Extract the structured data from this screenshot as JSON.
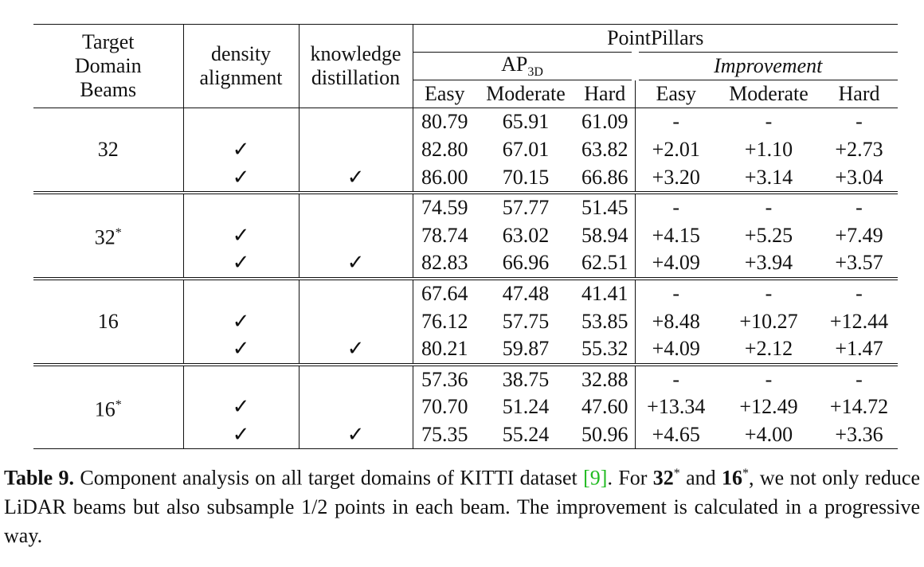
{
  "table": {
    "header": {
      "beams": [
        "Target",
        "Domain",
        "Beams"
      ],
      "density": [
        "density",
        "alignment"
      ],
      "knowledge": [
        "knowledge",
        "distillation"
      ],
      "method": "PointPillars",
      "ap": {
        "text": "AP",
        "sub": "3D"
      },
      "improvement": "Improvement",
      "sub_columns": [
        "Easy",
        "Moderate",
        "Hard",
        "Easy",
        "Moderate",
        "Hard"
      ]
    },
    "groups": [
      {
        "beams": {
          "text": "32"
        },
        "rows": [
          {
            "values": [
              "80.79",
              "65.91",
              "61.09",
              "-",
              "-",
              "-"
            ]
          },
          {
            "density": "✓",
            "values": [
              "82.80",
              "67.01",
              "63.82",
              "+2.01",
              "+1.10",
              "+2.73"
            ]
          },
          {
            "density": "✓",
            "knowledge": "✓",
            "values": [
              "86.00",
              "70.15",
              "66.86",
              "+3.20",
              "+3.14",
              "+3.04"
            ]
          }
        ]
      },
      {
        "beams": {
          "text": "32",
          "sup": "*"
        },
        "rows": [
          {
            "values": [
              "74.59",
              "57.77",
              "51.45",
              "-",
              "-",
              "-"
            ]
          },
          {
            "density": "✓",
            "values": [
              "78.74",
              "63.02",
              "58.94",
              "+4.15",
              "+5.25",
              "+7.49"
            ]
          },
          {
            "density": "✓",
            "knowledge": "✓",
            "values": [
              "82.83",
              "66.96",
              "62.51",
              "+4.09",
              "+3.94",
              "+3.57"
            ]
          }
        ]
      },
      {
        "beams": {
          "text": "16"
        },
        "rows": [
          {
            "values": [
              "67.64",
              "47.48",
              "41.41",
              "-",
              "-",
              "-"
            ]
          },
          {
            "density": "✓",
            "values": [
              "76.12",
              "57.75",
              "53.85",
              "+8.48",
              "+10.27",
              "+12.44"
            ]
          },
          {
            "density": "✓",
            "knowledge": "✓",
            "values": [
              "80.21",
              "59.87",
              "55.32",
              "+4.09",
              "+2.12",
              "+1.47"
            ]
          }
        ]
      },
      {
        "beams": {
          "text": "16",
          "sup": "*"
        },
        "rows": [
          {
            "values": [
              "57.36",
              "38.75",
              "32.88",
              "-",
              "-",
              "-"
            ]
          },
          {
            "density": "✓",
            "values": [
              "70.70",
              "51.24",
              "47.60",
              "+13.34",
              "+12.49",
              "+14.72"
            ]
          },
          {
            "density": "✓",
            "knowledge": "✓",
            "values": [
              "75.35",
              "55.24",
              "50.96",
              "+4.65",
              "+4.00",
              "+3.36"
            ]
          }
        ]
      }
    ]
  },
  "caption": [
    {
      "text": "Table 9.",
      "style": "bold"
    },
    {
      "text": " Component analysis on all target domains of KITTI dataset "
    },
    {
      "text": "[9]",
      "style": "green"
    },
    {
      "text": ". For "
    },
    {
      "text": "32",
      "style": "bold"
    },
    {
      "text": "*",
      "style": "sup"
    },
    {
      "text": " and "
    },
    {
      "text": "16",
      "style": "bold"
    },
    {
      "text": "*",
      "style": "sup"
    },
    {
      "text": ", we not only reduce LiDAR beams but also subsample 1/2 points in each beam. The improvement is calculated in a progressive way."
    }
  ]
}
